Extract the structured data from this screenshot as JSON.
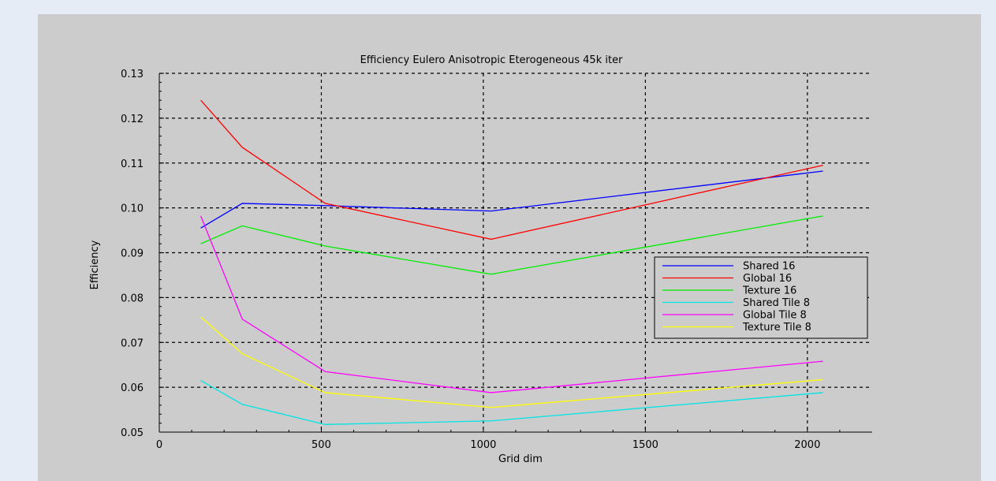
{
  "chart_data": {
    "type": "line",
    "title": "Efficiency Eulero Anisotropic Eterogeneous 45k iter",
    "xlabel": "Grid dim",
    "ylabel": "Efficiency",
    "xlim": [
      0,
      2200
    ],
    "ylim": [
      0.05,
      0.13
    ],
    "x_ticks": [
      0,
      500,
      1000,
      1500,
      2000
    ],
    "x_tick_labels": [
      "0",
      "500",
      "1000",
      "1500",
      "2000"
    ],
    "y_ticks": [
      0.05,
      0.06,
      0.07,
      0.08,
      0.09,
      0.1,
      0.11,
      0.12,
      0.13
    ],
    "y_tick_labels": [
      "0.05",
      "0.06",
      "0.07",
      "0.08",
      "0.09",
      "0.10",
      "0.11",
      "0.12",
      "0.13"
    ],
    "grid": true,
    "legend_position": "center-right",
    "x": [
      128,
      256,
      512,
      1024,
      2048
    ],
    "series": [
      {
        "name": "Shared 16",
        "color": "#0000ff",
        "values": [
          0.0955,
          0.101,
          0.1005,
          0.0993,
          0.1082
        ]
      },
      {
        "name": "Global 16",
        "color": "#ff0000",
        "values": [
          0.124,
          0.1135,
          0.101,
          0.093,
          0.1095
        ]
      },
      {
        "name": "Texture 16",
        "color": "#00ee00",
        "values": [
          0.092,
          0.096,
          0.0915,
          0.0852,
          0.0982
        ]
      },
      {
        "name": "Shared Tile 8",
        "color": "#00e5e5",
        "values": [
          0.0615,
          0.0562,
          0.0517,
          0.0525,
          0.0588
        ]
      },
      {
        "name": "Global Tile 8",
        "color": "#ff00ff",
        "values": [
          0.0982,
          0.0752,
          0.0635,
          0.0588,
          0.0658
        ]
      },
      {
        "name": "Texture Tile 8",
        "color": "#ffff00",
        "values": [
          0.0757,
          0.0675,
          0.0588,
          0.0555,
          0.0617
        ]
      }
    ]
  }
}
